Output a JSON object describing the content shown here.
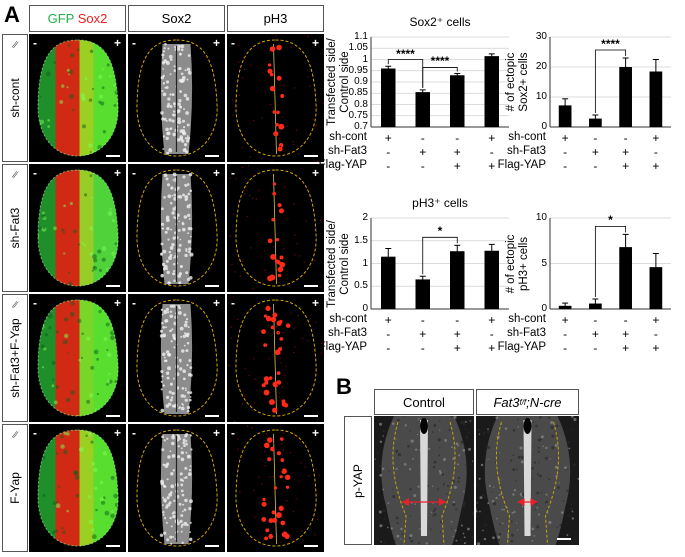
{
  "panel_a": {
    "letter": "A",
    "column_headers": [
      {
        "id": "gfp-sox2",
        "parts": [
          {
            "text": "GFP ",
            "color": "#22b14c"
          },
          {
            "text": "Sox2",
            "color": "#ed1c24"
          }
        ]
      },
      {
        "id": "sox2",
        "parts": [
          {
            "text": "Sox2",
            "color": "#000000"
          }
        ]
      },
      {
        "id": "ph3",
        "parts": [
          {
            "text": "pH3",
            "color": "#000000"
          }
        ]
      }
    ],
    "rows": [
      {
        "label": "sh-cont"
      },
      {
        "label": "sh-Fat3"
      },
      {
        "label": "sh-Fat3+F-Yap"
      },
      {
        "label": "F-Yap"
      }
    ],
    "electrode_symbol": "⫽",
    "minus": "-",
    "plus": "+"
  },
  "conditions": {
    "names": [
      "sh-cont",
      "sh-Fat3",
      "Flag-YAP"
    ],
    "signs": [
      [
        "+",
        "-",
        "-",
        "+"
      ],
      [
        "-",
        "+",
        "+",
        "-"
      ],
      [
        "-",
        "-",
        "+",
        "+"
      ]
    ]
  },
  "chart_data": [
    {
      "id": "sox2-ratio",
      "type": "bar",
      "title": "Sox2⁺ cells",
      "ylabel": "Transfected side/ Control side",
      "ylim": [
        0.7,
        1.1
      ],
      "yticks": [
        "0.7",
        "0.75",
        "0.8",
        "0.85",
        "0.9",
        "0.95",
        "1",
        "1.05",
        "1.1"
      ],
      "values": [
        0.96,
        0.855,
        0.93,
        1.015
      ],
      "errors": [
        0.01,
        0.01,
        0.008,
        0.01
      ],
      "significance": [
        {
          "from": 0,
          "to": 1,
          "label": "****"
        },
        {
          "from": 1,
          "to": 2,
          "label": "****"
        }
      ]
    },
    {
      "id": "sox2-ectopic",
      "type": "bar",
      "title": "",
      "ylabel": "# of ectopic Sox2+ cells",
      "ylim": [
        0,
        30
      ],
      "yticks": [
        "0",
        "10",
        "20",
        "30"
      ],
      "values": [
        7.2,
        2.8,
        20.0,
        18.5
      ],
      "errors": [
        2.2,
        1.2,
        3.0,
        4.0
      ],
      "significance": [
        {
          "from": 1,
          "to": 2,
          "label": "****"
        }
      ]
    },
    {
      "id": "ph3-ratio",
      "type": "bar",
      "title": "pH3⁺ cells",
      "ylabel": "Transfected side/ Control side",
      "ylim": [
        0,
        2
      ],
      "yticks": [
        "0",
        "0.5",
        "1",
        "1.5",
        "2"
      ],
      "values": [
        1.15,
        0.65,
        1.27,
        1.28
      ],
      "errors": [
        0.18,
        0.07,
        0.13,
        0.14
      ],
      "significance": [
        {
          "from": 1,
          "to": 2,
          "label": "*"
        }
      ]
    },
    {
      "id": "ph3-ectopic",
      "type": "bar",
      "title": "",
      "ylabel": "# of ectopic pH3+ cells",
      "ylim": [
        0,
        10
      ],
      "yticks": [
        "0",
        "5",
        "10"
      ],
      "values": [
        0.35,
        0.6,
        6.8,
        4.6
      ],
      "errors": [
        0.3,
        0.5,
        1.4,
        1.5
      ],
      "significance": [
        {
          "from": 1,
          "to": 2,
          "label": "*"
        }
      ]
    }
  ],
  "panel_b": {
    "letter": "B",
    "headers": [
      {
        "id": "control",
        "parts": [
          {
            "text": "Control",
            "italic": false
          }
        ]
      },
      {
        "id": "fat3-ncre",
        "parts": [
          {
            "text": "Fat3",
            "italic": true
          },
          {
            "text": "f/f",
            "italic": true,
            "sup": true
          },
          {
            "text": ";N-cre",
            "italic": true
          }
        ]
      }
    ],
    "row_label": "p-YAP",
    "colors": {
      "arrow": "#e8202a",
      "outline": "#c8a400"
    }
  }
}
